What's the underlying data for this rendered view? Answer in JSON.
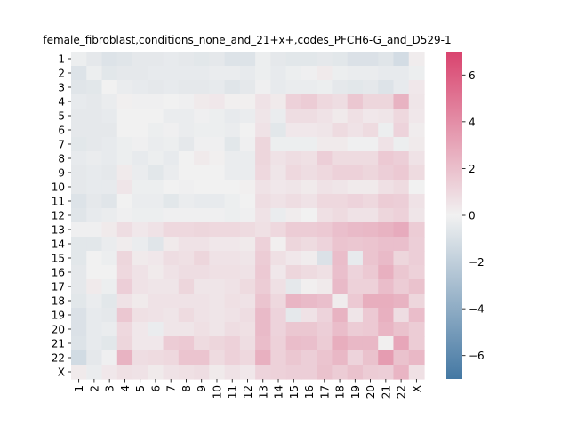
{
  "chart_data": {
    "type": "heatmap",
    "title": "female_fibroblast,conditions_none_and_21+x+,codes_PFCH6-G_and_D529-1",
    "row_labels": [
      "1",
      "2",
      "3",
      "4",
      "5",
      "6",
      "7",
      "8",
      "9",
      "10",
      "11",
      "12",
      "13",
      "14",
      "15",
      "16",
      "17",
      "18",
      "19",
      "20",
      "21",
      "22",
      "X"
    ],
    "col_labels": [
      "1",
      "2",
      "3",
      "4",
      "5",
      "6",
      "7",
      "8",
      "9",
      "10",
      "11",
      "12",
      "13",
      "14",
      "15",
      "16",
      "17",
      "18",
      "19",
      "20",
      "21",
      "22",
      "X"
    ],
    "values": [
      [
        -0.2,
        -0.5,
        -0.8,
        -0.7,
        -0.5,
        -0.5,
        -0.4,
        -0.5,
        -0.6,
        -0.5,
        -0.8,
        -0.8,
        -0.2,
        -0.5,
        -0.6,
        -0.6,
        -0.5,
        -0.6,
        -0.9,
        -0.9,
        -0.7,
        -1.2,
        0.2
      ],
      [
        -0.8,
        -0.2,
        -0.6,
        -0.5,
        -0.5,
        -0.4,
        -0.4,
        -0.4,
        -0.4,
        -0.3,
        -0.3,
        -0.4,
        -0.2,
        -0.4,
        -0.2,
        -0.1,
        0.3,
        -0.2,
        -0.3,
        -0.3,
        -0.4,
        -0.4,
        -0.2
      ],
      [
        -0.7,
        -0.6,
        0,
        -0.3,
        -0.4,
        -0.5,
        -0.4,
        -0.5,
        -0.5,
        -0.4,
        -0.7,
        -0.5,
        -0.1,
        -0.4,
        -0.3,
        -0.3,
        -0.2,
        -0.5,
        -0.6,
        -0.5,
        -0.8,
        -0.4,
        0.4
      ],
      [
        -0.4,
        -0.5,
        -0.3,
        0.1,
        -0.1,
        -0.1,
        0,
        -0.1,
        0.3,
        0.4,
        0.1,
        0.1,
        0.6,
        0.3,
        1.3,
        1.5,
        1.0,
        0.8,
        1.7,
        1.1,
        1.1,
        2.5,
        0.5
      ],
      [
        -0.5,
        -0.5,
        -0.4,
        0,
        0,
        0,
        -0.3,
        -0.3,
        -0.1,
        -0.2,
        -0.4,
        -0.3,
        0.5,
        -0.3,
        0.8,
        0.8,
        0.6,
        0.3,
        0.7,
        0.4,
        0.5,
        1.0,
        0.4
      ],
      [
        -0.5,
        -0.5,
        -0.5,
        0,
        0,
        -0.2,
        -0.1,
        -0.3,
        -0.2,
        -0.2,
        -0.3,
        0,
        0.6,
        -0.6,
        0.4,
        0.4,
        0.5,
        0.9,
        0.6,
        0.9,
        -0.2,
        1.2,
        0.2
      ],
      [
        -0.6,
        -0.5,
        -0.4,
        -0.2,
        -0.1,
        -0.3,
        -0.2,
        -0.5,
        -0.1,
        -0.1,
        -0.6,
        -0.1,
        1.1,
        -0.2,
        -0.2,
        -0.2,
        0.3,
        0.3,
        -0.1,
        -0.1,
        0.6,
        -0.2,
        0.3
      ],
      [
        -0.4,
        -0.3,
        -0.4,
        -0.2,
        -0.4,
        -0.2,
        -0.4,
        0,
        0.3,
        0.1,
        -0.3,
        -0.3,
        1.1,
        0.6,
        0.8,
        0.7,
        1.4,
        0.9,
        0.9,
        0.9,
        1.6,
        1.4,
        0.6
      ],
      [
        -0.5,
        -0.4,
        -0.5,
        0.3,
        -0.3,
        -0.6,
        -0.3,
        0,
        0,
        0,
        -0.3,
        -0.3,
        1.0,
        0.5,
        1.0,
        0.8,
        1.0,
        1.3,
        1.3,
        1.1,
        1.4,
        1.6,
        0.9
      ],
      [
        -0.5,
        -0.4,
        -0.4,
        0.5,
        -0.2,
        -0.2,
        0,
        -0.1,
        0,
        0,
        0,
        0.1,
        0.6,
        0.4,
        0.5,
        0.3,
        0.6,
        0.5,
        0.3,
        0.3,
        0.7,
        0.9,
        0.0
      ],
      [
        -0.8,
        -0.5,
        -0.7,
        0,
        -0.3,
        -0.3,
        -0.6,
        -0.3,
        -0.4,
        -0.4,
        -0.2,
        0,
        0.8,
        0.6,
        0.8,
        0.6,
        1.0,
        1.0,
        1.2,
        1.0,
        1.5,
        1.4,
        0.6
      ],
      [
        -0.7,
        -0.4,
        -0.3,
        -0.1,
        -0.2,
        -0.2,
        -0.1,
        -0.1,
        -0.1,
        -0.1,
        -0.2,
        -0.1,
        0.6,
        -0.3,
        0.2,
        0,
        0.7,
        0.9,
        0.6,
        0.6,
        1.1,
        1.3,
        0.5
      ],
      [
        -0.1,
        -0.1,
        0.3,
        0.8,
        0.4,
        0.6,
        1.0,
        1.0,
        1.1,
        1.0,
        1.0,
        0.9,
        0.7,
        1.0,
        1.5,
        1.5,
        1.6,
        2.0,
        2.2,
        2.3,
        2.5,
        2.8,
        1.5
      ],
      [
        -0.6,
        -0.6,
        -0.3,
        0.2,
        -0.3,
        -0.7,
        0.3,
        0.6,
        0.6,
        0.4,
        0.4,
        0.3,
        1.3,
        0.1,
        1.1,
        0.9,
        1.2,
        1.8,
        1.7,
        1.8,
        2.0,
        2.0,
        1.4
      ],
      [
        -0.6,
        0,
        -0.2,
        1.1,
        0.3,
        0.4,
        0.8,
        0.7,
        1.1,
        0.6,
        0.6,
        0.5,
        1.5,
        0.7,
        0.4,
        0.2,
        -0.9,
        2.1,
        -0.4,
        1.8,
        2.2,
        1.1,
        1.4
      ],
      [
        -0.5,
        0,
        0,
        1.0,
        0.6,
        0.3,
        0.6,
        0.8,
        0.8,
        0.7,
        0.7,
        0.6,
        1.6,
        0.4,
        1.1,
        0.9,
        0.7,
        2.0,
        1.2,
        1.6,
        2.6,
        1.7,
        1.3
      ],
      [
        -0.5,
        0.3,
        -0.2,
        1.4,
        0.6,
        0.5,
        0.5,
        1.1,
        0.5,
        0.5,
        0.6,
        0.9,
        1.5,
        0.7,
        -0.5,
        0.1,
        0.3,
        2.2,
        1.3,
        1.3,
        2.1,
        1.5,
        1.9
      ],
      [
        -0.6,
        -0.3,
        -0.6,
        0.6,
        0.3,
        0.6,
        0.6,
        0.6,
        0.6,
        0.5,
        0.7,
        0.6,
        1.8,
        1.0,
        2.4,
        2.2,
        2.0,
        0.2,
        1.6,
        2.7,
        2.7,
        2.5,
        1.1
      ],
      [
        -0.9,
        -0.4,
        -0.5,
        1.7,
        0.7,
        0.6,
        0.5,
        0.9,
        0.6,
        0.5,
        0.6,
        0.8,
        2.2,
        1.2,
        -0.5,
        0.6,
        1.2,
        2.5,
        0.5,
        1.6,
        2.6,
        0.8,
        2.1
      ],
      [
        -0.9,
        -0.4,
        -0.3,
        1.0,
        0.4,
        -0.3,
        0.5,
        0.5,
        0.7,
        0.5,
        0.8,
        0.7,
        2.2,
        1.2,
        1.7,
        1.7,
        1.4,
        2.1,
        1.5,
        1.6,
        2.4,
        1.9,
        1.5
      ],
      [
        -0.8,
        -0.4,
        -0.6,
        1.1,
        0.4,
        0.4,
        1.5,
        1.6,
        0.9,
        1.1,
        1.3,
        0.8,
        2.1,
        1.3,
        2.1,
        2.0,
        1.5,
        2.7,
        2.3,
        2.3,
        0.1,
        3.0,
        1.5
      ],
      [
        -1.3,
        -0.5,
        -0.1,
        2.5,
        0.8,
        0.9,
        1.0,
        1.8,
        1.8,
        0.9,
        1.3,
        1.0,
        2.6,
        1.3,
        1.7,
        1.4,
        1.8,
        2.3,
        1.2,
        1.9,
        3.4,
        1.9,
        2.3
      ],
      [
        0.3,
        -0.3,
        0.4,
        0.7,
        0.6,
        0.3,
        0.6,
        0.7,
        0.8,
        0.3,
        0.6,
        0.4,
        1.2,
        1.3,
        1.4,
        1.4,
        1.9,
        1.5,
        1.9,
        1.5,
        1.4,
        2.4,
        0.7
      ]
    ],
    "colorbar": {
      "min": -7,
      "max": 7,
      "ticks": [
        -6,
        -4,
        -2,
        0,
        2,
        4,
        6
      ]
    },
    "colormap": {
      "low": "#4478a3",
      "mid": "#f1f1f1",
      "high": "#d9436e"
    }
  }
}
